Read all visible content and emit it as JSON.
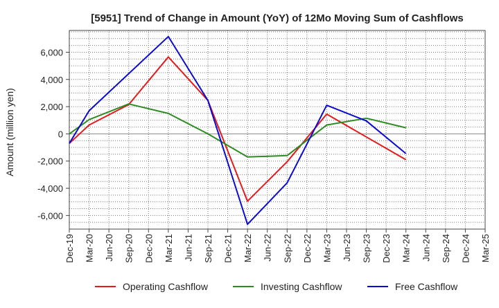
{
  "chart_data": {
    "type": "line",
    "title": "[5951]  Trend of Change in Amount (YoY) of 12Mo Moving Sum of Cashflows",
    "xlabel": "",
    "ylabel": "Amount (million yen)",
    "ylim": [
      -7000,
      7600
    ],
    "yticks": [
      -6000,
      -4000,
      -2000,
      0,
      2000,
      4000,
      6000
    ],
    "ytick_labels": [
      "-6,000",
      "-4,000",
      "-2,000",
      "0",
      "2,000",
      "4,000",
      "6,000"
    ],
    "categories": [
      "Dec-19",
      "Mar-20",
      "Jun-20",
      "Sep-20",
      "Dec-20",
      "Mar-21",
      "Jun-21",
      "Sep-21",
      "Dec-21",
      "Mar-22",
      "Jun-22",
      "Sep-22",
      "Dec-22",
      "Mar-23",
      "Jun-23",
      "Sep-23",
      "Dec-23",
      "Mar-24",
      "Jun-24",
      "Sep-24",
      "Dec-24",
      "Mar-25"
    ],
    "grid": true,
    "legend_position": "bottom",
    "series": [
      {
        "name": "Operating Cashflow",
        "color": "#e41a1c",
        "values": [
          -700,
          650,
          null,
          2150,
          null,
          5650,
          null,
          2450,
          null,
          -4950,
          null,
          -2050,
          null,
          1450,
          null,
          null,
          null,
          -1900,
          null,
          null,
          null,
          null
        ]
      },
      {
        "name": "Investing Cashflow",
        "color": "#2e8b22",
        "values": [
          0,
          1050,
          null,
          2200,
          null,
          1500,
          null,
          0,
          null,
          -1700,
          null,
          -1600,
          null,
          650,
          null,
          1150,
          null,
          450,
          null,
          null,
          null,
          null
        ]
      },
      {
        "name": "Free Cashflow",
        "color": "#0a0ad2",
        "values": [
          -700,
          1700,
          null,
          null,
          null,
          7150,
          null,
          2450,
          null,
          -6650,
          null,
          -3600,
          null,
          2100,
          null,
          950,
          null,
          -1450,
          null,
          null,
          null,
          null
        ]
      }
    ]
  }
}
